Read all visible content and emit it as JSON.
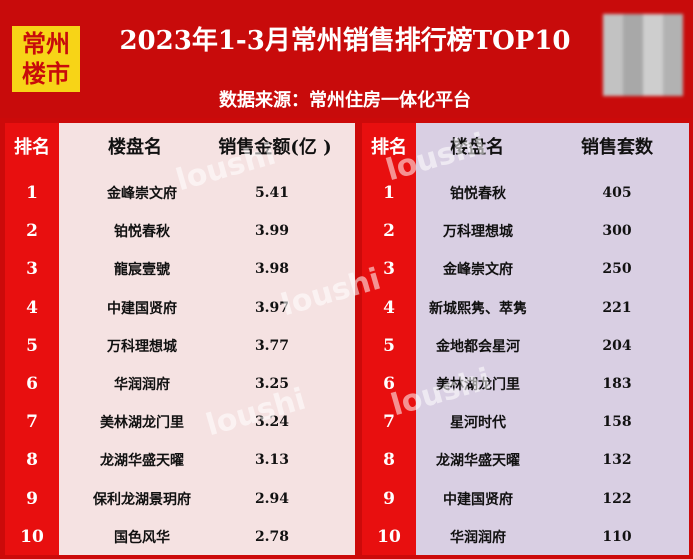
{
  "header": {
    "logo_line1": "常州",
    "logo_line2": "楼市",
    "title": "2023年1-3月常州销售排行榜TOP10",
    "subtitle": "数据来源：常州住房一体化平台"
  },
  "left_table": {
    "headers": {
      "rank": "排名",
      "name": "楼盘名",
      "value": "销售金额(亿 )"
    },
    "rows": [
      {
        "rank": "1",
        "name": "金峰崇文府",
        "value": "5.41"
      },
      {
        "rank": "2",
        "name": "铂悦春秋",
        "value": "3.99"
      },
      {
        "rank": "3",
        "name": "龍宸壹號",
        "value": "3.98"
      },
      {
        "rank": "4",
        "name": "中建国贤府",
        "value": "3.97"
      },
      {
        "rank": "5",
        "name": "万科理想城",
        "value": "3.77"
      },
      {
        "rank": "6",
        "name": "华润润府",
        "value": "3.25"
      },
      {
        "rank": "7",
        "name": "美林湖龙门里",
        "value": "3.24"
      },
      {
        "rank": "8",
        "name": "龙湖华盛天曜",
        "value": "3.13"
      },
      {
        "rank": "9",
        "name": "保利龙湖景玥府",
        "value": "2.94"
      },
      {
        "rank": "10",
        "name": "国色风华",
        "value": "2.78"
      }
    ]
  },
  "right_table": {
    "headers": {
      "rank": "排名",
      "name": "楼盘名",
      "value": "销售套数"
    },
    "rows": [
      {
        "rank": "1",
        "name": "铂悦春秋",
        "value": "405"
      },
      {
        "rank": "2",
        "name": "万科理想城",
        "value": "300"
      },
      {
        "rank": "3",
        "name": "金峰崇文府",
        "value": "250"
      },
      {
        "rank": "4",
        "name": "新城熙隽、萃隽",
        "value": "221"
      },
      {
        "rank": "5",
        "name": "金地都会星河",
        "value": "204"
      },
      {
        "rank": "6",
        "name": "美林湖龙门里",
        "value": "183"
      },
      {
        "rank": "7",
        "name": "星河时代",
        "value": "158"
      },
      {
        "rank": "8",
        "name": "龙湖华盛天曜",
        "value": "132"
      },
      {
        "rank": "9",
        "name": "中建国贤府",
        "value": "122"
      },
      {
        "rank": "10",
        "name": "华润润府",
        "value": "110"
      }
    ]
  },
  "watermark": "loushi",
  "colors": {
    "red": "#c80b0b",
    "rank_red": "#e80f0f",
    "left_bg": "#f5e2e2",
    "right_bg": "#d9cfe3",
    "logo_yellow": "#f7d417"
  }
}
